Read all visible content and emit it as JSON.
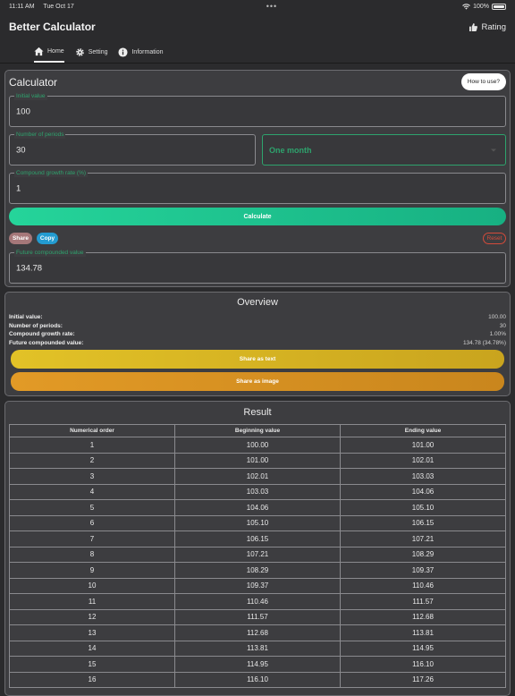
{
  "status_bar": {
    "time": "11:11 AM",
    "date": "Tue Oct 17",
    "battery": "100%"
  },
  "header": {
    "title": "Better Calculator",
    "rating_label": "Rating"
  },
  "tabs": [
    {
      "label": "Home",
      "icon": "home-icon",
      "active": true
    },
    {
      "label": "Setting",
      "icon": "gear-icon"
    },
    {
      "label": "Information",
      "icon": "info-icon"
    }
  ],
  "calculator": {
    "title": "Calculator",
    "how_to_use": "How to use?",
    "initial_value": {
      "label": "Initial value",
      "value": "100"
    },
    "periods": {
      "label": "Number of periods",
      "value": "30"
    },
    "period_unit": {
      "value": "One month"
    },
    "growth_rate": {
      "label": "Compound growth rate (%)",
      "value": "1"
    },
    "calculate_label": "Calculate",
    "share_label": "Share",
    "copy_label": "Copy",
    "reset_label": "Reset",
    "future_value": {
      "label": "Future compounded value",
      "value": "134.78"
    }
  },
  "overview": {
    "title": "Overview",
    "rows": [
      {
        "label": "Initial value:",
        "value": "100.00"
      },
      {
        "label": "Number of periods:",
        "value": "30"
      },
      {
        "label": "Compound growth rate:",
        "value": "1.00%"
      },
      {
        "label": "Future compounded value:",
        "value": "134.78 (34.78%)"
      }
    ],
    "share_text_label": "Share as text",
    "share_image_label": "Share as image"
  },
  "result": {
    "title": "Result",
    "columns": [
      "Numerical order",
      "Beginning value",
      "Ending value"
    ],
    "rows": [
      [
        "1",
        "100.00",
        "101.00"
      ],
      [
        "2",
        "101.00",
        "102.01"
      ],
      [
        "3",
        "102.01",
        "103.03"
      ],
      [
        "4",
        "103.03",
        "104.06"
      ],
      [
        "5",
        "104.06",
        "105.10"
      ],
      [
        "6",
        "105.10",
        "106.15"
      ],
      [
        "7",
        "106.15",
        "107.21"
      ],
      [
        "8",
        "107.21",
        "108.29"
      ],
      [
        "9",
        "108.29",
        "109.37"
      ],
      [
        "10",
        "109.37",
        "110.46"
      ],
      [
        "11",
        "110.46",
        "111.57"
      ],
      [
        "12",
        "111.57",
        "112.68"
      ],
      [
        "13",
        "112.68",
        "113.81"
      ],
      [
        "14",
        "113.81",
        "114.95"
      ],
      [
        "15",
        "114.95",
        "116.10"
      ],
      [
        "16",
        "116.10",
        "117.26"
      ]
    ]
  },
  "colors": {
    "accent_green": "#2ea36d",
    "calculate": "#1fc18e",
    "share_text": "#d9b824",
    "share_image": "#d99123",
    "reset": "#d44b3a",
    "copy": "#239bd0",
    "share": "#a57779"
  }
}
